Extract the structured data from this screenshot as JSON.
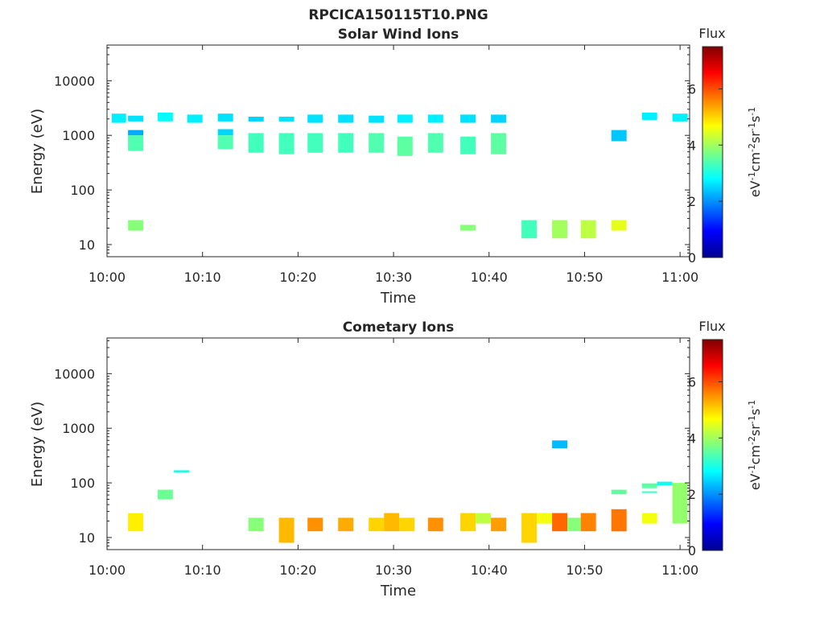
{
  "figure_title": "RPCICA150115T10.PNG",
  "colormap": [
    "#00008f",
    "#0000ff",
    "#0080ff",
    "#00ffff",
    "#80ff80",
    "#ffff00",
    "#ff8000",
    "#ff0000",
    "#800000"
  ],
  "chart_data": [
    {
      "type": "heatmap",
      "title": "Solar Wind Ions",
      "xlabel": "Time",
      "ylabel": "Energy (eV)",
      "x_ticks": [
        "10:00",
        "10:10",
        "10:20",
        "10:30",
        "10:40",
        "10:50",
        "11:00"
      ],
      "x_range_minutes": [
        0,
        61
      ],
      "y_scale": "log",
      "y_ticks": [
        "10",
        "100",
        "1000",
        "10000"
      ],
      "y_range": [
        6,
        45000
      ],
      "colorbar": {
        "title": "Flux",
        "label": "eV-1cm-2sr-1s-1",
        "ticks": [
          "0",
          "2",
          "4",
          "6"
        ],
        "range": [
          0,
          7.5
        ]
      },
      "cells": [
        {
          "t0": 0.5,
          "t1": 2.0,
          "e0": 1700,
          "e1": 2500,
          "v": 2.7
        },
        {
          "t0": 2.2,
          "t1": 3.8,
          "e0": 1800,
          "e1": 2300,
          "v": 2.6
        },
        {
          "t0": 2.2,
          "t1": 3.8,
          "e0": 1000,
          "e1": 1250,
          "v": 2.2
        },
        {
          "t0": 2.2,
          "t1": 3.8,
          "e0": 520,
          "e1": 1000,
          "v": 3.4
        },
        {
          "t0": 2.2,
          "t1": 3.8,
          "e0": 18,
          "e1": 28,
          "v": 3.8
        },
        {
          "t0": 5.3,
          "t1": 6.9,
          "e0": 1800,
          "e1": 2600,
          "v": 2.8
        },
        {
          "t0": 8.4,
          "t1": 10.0,
          "e0": 1700,
          "e1": 2400,
          "v": 2.7
        },
        {
          "t0": 11.6,
          "t1": 13.2,
          "e0": 1800,
          "e1": 2500,
          "v": 2.6
        },
        {
          "t0": 11.6,
          "t1": 13.2,
          "e0": 1000,
          "e1": 1300,
          "v": 2.5
        },
        {
          "t0": 11.6,
          "t1": 13.2,
          "e0": 560,
          "e1": 1000,
          "v": 3.4
        },
        {
          "t0": 14.8,
          "t1": 16.4,
          "e0": 1800,
          "e1": 2200,
          "v": 2.5
        },
        {
          "t0": 14.8,
          "t1": 16.4,
          "e0": 480,
          "e1": 1100,
          "v": 3.3
        },
        {
          "t0": 18.0,
          "t1": 19.6,
          "e0": 1800,
          "e1": 2200,
          "v": 2.6
        },
        {
          "t0": 18.0,
          "t1": 19.6,
          "e0": 450,
          "e1": 1100,
          "v": 3.3
        },
        {
          "t0": 21.0,
          "t1": 22.6,
          "e0": 1700,
          "e1": 2400,
          "v": 2.6
        },
        {
          "t0": 21.0,
          "t1": 22.6,
          "e0": 480,
          "e1": 1100,
          "v": 3.3
        },
        {
          "t0": 24.2,
          "t1": 25.8,
          "e0": 1700,
          "e1": 2400,
          "v": 2.6
        },
        {
          "t0": 24.2,
          "t1": 25.8,
          "e0": 480,
          "e1": 1100,
          "v": 3.3
        },
        {
          "t0": 27.4,
          "t1": 29.0,
          "e0": 1700,
          "e1": 2300,
          "v": 2.6
        },
        {
          "t0": 27.4,
          "t1": 29.0,
          "e0": 480,
          "e1": 1100,
          "v": 3.4
        },
        {
          "t0": 30.4,
          "t1": 32.0,
          "e0": 1700,
          "e1": 2400,
          "v": 2.7
        },
        {
          "t0": 30.4,
          "t1": 32.0,
          "e0": 420,
          "e1": 950,
          "v": 3.5
        },
        {
          "t0": 33.6,
          "t1": 35.2,
          "e0": 1700,
          "e1": 2400,
          "v": 2.7
        },
        {
          "t0": 33.6,
          "t1": 35.2,
          "e0": 480,
          "e1": 1100,
          "v": 3.4
        },
        {
          "t0": 37.0,
          "t1": 38.6,
          "e0": 1700,
          "e1": 2400,
          "v": 2.6
        },
        {
          "t0": 37.0,
          "t1": 38.6,
          "e0": 450,
          "e1": 950,
          "v": 3.3
        },
        {
          "t0": 37.0,
          "t1": 38.6,
          "e0": 18,
          "e1": 23,
          "v": 3.8
        },
        {
          "t0": 40.2,
          "t1": 41.8,
          "e0": 1700,
          "e1": 2400,
          "v": 2.5
        },
        {
          "t0": 40.2,
          "t1": 41.8,
          "e0": 450,
          "e1": 1100,
          "v": 3.5
        },
        {
          "t0": 43.4,
          "t1": 45.0,
          "e0": 13,
          "e1": 28,
          "v": 3.3
        },
        {
          "t0": 46.6,
          "t1": 48.2,
          "e0": 13,
          "e1": 28,
          "v": 4.0
        },
        {
          "t0": 49.6,
          "t1": 51.2,
          "e0": 13,
          "e1": 28,
          "v": 4.2
        },
        {
          "t0": 52.8,
          "t1": 54.4,
          "e0": 780,
          "e1": 1250,
          "v": 2.4
        },
        {
          "t0": 52.8,
          "t1": 54.4,
          "e0": 18,
          "e1": 28,
          "v": 4.5
        },
        {
          "t0": 56.0,
          "t1": 57.6,
          "e0": 1900,
          "e1": 2600,
          "v": 2.7
        },
        {
          "t0": 59.2,
          "t1": 60.8,
          "e0": 1800,
          "e1": 2500,
          "v": 2.7
        }
      ]
    },
    {
      "type": "heatmap",
      "title": "Cometary Ions",
      "xlabel": "Time",
      "ylabel": "Energy (eV)",
      "x_ticks": [
        "10:00",
        "10:10",
        "10:20",
        "10:30",
        "10:40",
        "10:50",
        "11:00"
      ],
      "x_range_minutes": [
        0,
        61
      ],
      "y_scale": "log",
      "y_ticks": [
        "10",
        "100",
        "1000",
        "10000"
      ],
      "y_range": [
        6,
        45000
      ],
      "colorbar": {
        "title": "Flux",
        "label": "eV-1cm-2sr-1s-1",
        "ticks": [
          "0",
          "2",
          "4",
          "6"
        ],
        "range": [
          0,
          7.5
        ]
      },
      "cells": [
        {
          "t0": 2.2,
          "t1": 3.8,
          "e0": 13,
          "e1": 28,
          "v": 4.8
        },
        {
          "t0": 5.3,
          "t1": 6.9,
          "e0": 50,
          "e1": 75,
          "v": 3.6
        },
        {
          "t0": 7.0,
          "t1": 8.6,
          "e0": 155,
          "e1": 170,
          "v": 3.0
        },
        {
          "t0": 14.8,
          "t1": 16.4,
          "e0": 13,
          "e1": 23,
          "v": 3.8
        },
        {
          "t0": 18.0,
          "t1": 19.6,
          "e0": 8,
          "e1": 23,
          "v": 5.2
        },
        {
          "t0": 21.0,
          "t1": 22.6,
          "e0": 13,
          "e1": 23,
          "v": 5.5
        },
        {
          "t0": 24.2,
          "t1": 25.8,
          "e0": 13,
          "e1": 23,
          "v": 5.3
        },
        {
          "t0": 27.4,
          "t1": 29.0,
          "e0": 13,
          "e1": 23,
          "v": 5.0
        },
        {
          "t0": 29.0,
          "t1": 30.6,
          "e0": 13,
          "e1": 28,
          "v": 5.2
        },
        {
          "t0": 30.6,
          "t1": 32.2,
          "e0": 13,
          "e1": 23,
          "v": 5.0
        },
        {
          "t0": 33.6,
          "t1": 35.2,
          "e0": 13,
          "e1": 23,
          "v": 5.5
        },
        {
          "t0": 37.0,
          "t1": 38.6,
          "e0": 13,
          "e1": 28,
          "v": 5.0
        },
        {
          "t0": 38.6,
          "t1": 40.2,
          "e0": 18,
          "e1": 28,
          "v": 4.2
        },
        {
          "t0": 40.2,
          "t1": 41.8,
          "e0": 13,
          "e1": 23,
          "v": 5.4
        },
        {
          "t0": 43.4,
          "t1": 45.0,
          "e0": 8,
          "e1": 28,
          "v": 5.0
        },
        {
          "t0": 45.0,
          "t1": 46.6,
          "e0": 18,
          "e1": 28,
          "v": 4.6
        },
        {
          "t0": 46.6,
          "t1": 48.2,
          "e0": 13,
          "e1": 28,
          "v": 5.8
        },
        {
          "t0": 46.6,
          "t1": 48.2,
          "e0": 430,
          "e1": 600,
          "v": 2.3
        },
        {
          "t0": 48.2,
          "t1": 49.6,
          "e0": 13,
          "e1": 23,
          "v": 3.8
        },
        {
          "t0": 49.6,
          "t1": 51.2,
          "e0": 13,
          "e1": 28,
          "v": 5.6
        },
        {
          "t0": 52.8,
          "t1": 54.4,
          "e0": 13,
          "e1": 33,
          "v": 5.7
        },
        {
          "t0": 52.8,
          "t1": 54.4,
          "e0": 62,
          "e1": 75,
          "v": 3.5
        },
        {
          "t0": 56.0,
          "t1": 57.6,
          "e0": 18,
          "e1": 28,
          "v": 4.6
        },
        {
          "t0": 56.0,
          "t1": 57.6,
          "e0": 80,
          "e1": 98,
          "v": 3.5
        },
        {
          "t0": 56.0,
          "t1": 57.6,
          "e0": 66,
          "e1": 70,
          "v": 3.2
        },
        {
          "t0": 57.6,
          "t1": 59.2,
          "e0": 90,
          "e1": 105,
          "v": 2.9
        },
        {
          "t0": 59.2,
          "t1": 60.8,
          "e0": 18,
          "e1": 100,
          "v": 3.9
        }
      ]
    }
  ]
}
